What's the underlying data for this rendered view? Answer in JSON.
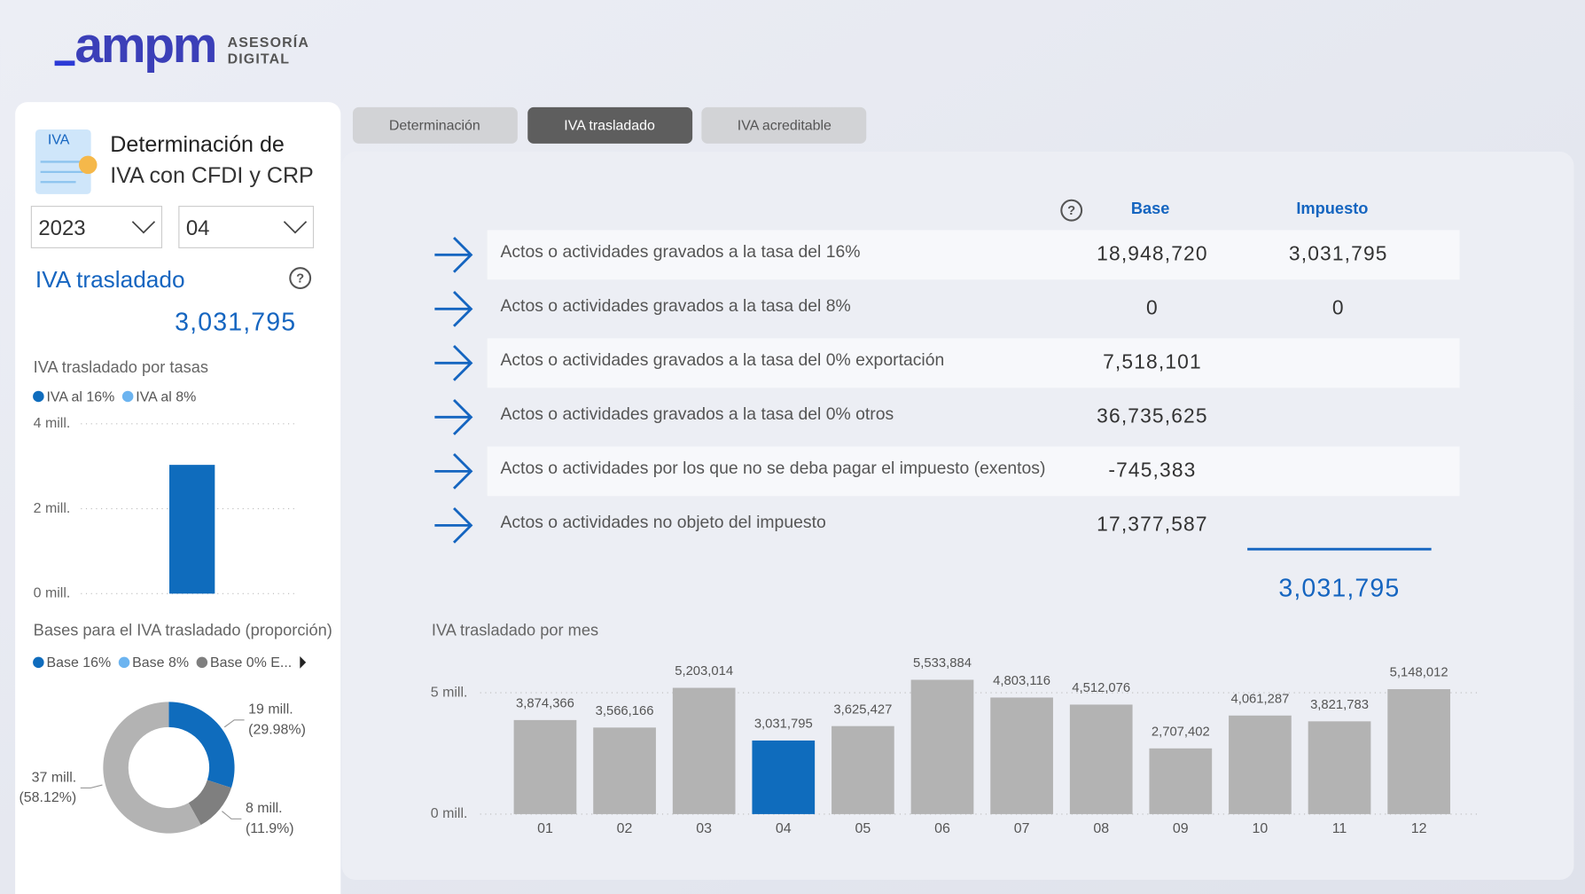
{
  "logo": {
    "brand": "ampm",
    "line1": "ASESORÍA",
    "line2": "DIGITAL"
  },
  "sidebar": {
    "icon_label": "IVA",
    "title_line1": "Determinación de",
    "title_line2": "IVA con CFDI y CRP",
    "year": "2023",
    "month": "04",
    "section": "IVA trasladado",
    "help": "?",
    "total": "3,031,795"
  },
  "tabs": [
    "Determinación",
    "IVA trasladado",
    "IVA acreditable"
  ],
  "table": {
    "help": "?",
    "headers": [
      "Base",
      "Impuesto"
    ],
    "rows": [
      [
        "Actos o actividades gravados a la tasa del 16%",
        "18,948,720",
        "3,031,795"
      ],
      [
        "Actos o actividades gravados a la tasa del 8%",
        "0",
        "0"
      ],
      [
        "Actos o actividades gravados a la tasa del 0% exportación",
        "7,518,101"
      ],
      [
        "Actos o actividades gravados a la tasa del 0% otros",
        "36,735,625"
      ],
      [
        "Actos o actividades por los que no se deba pagar el impuesto (exentos)",
        "-745,383"
      ],
      [
        "Actos o actividades no objeto del impuesto",
        "17,377,587"
      ]
    ],
    "total": "3,031,795"
  },
  "chart_data": [
    {
      "type": "bar",
      "title": "IVA trasladado por tasas",
      "categories": [
        null
      ],
      "series": [
        {
          "name": "IVA al 16%",
          "color": "#0f6cbd",
          "values": [
            3.031795
          ]
        },
        {
          "name": "IVA al 8%",
          "color": "#6cb4f0",
          "values": [
            0
          ]
        }
      ],
      "ylim": [
        0,
        4
      ],
      "yticks": [
        {
          "value": 0,
          "label": "0 mill."
        },
        {
          "value": 2,
          "label": "2 mill."
        },
        {
          "value": 4,
          "label": "4 mill."
        }
      ],
      "grid": true
    },
    {
      "type": "donut",
      "title": "Bases para el IVA trasladado (proporción)",
      "categories": [
        "Base 16%",
        "Base 8%",
        "Base 0% E...",
        null
      ],
      "values": [
        29.98,
        0,
        11.9,
        58.12
      ],
      "value_labels": [
        "(29.98%)",
        null,
        "(11.9%)",
        "(58.12%)"
      ],
      "amount_labels": [
        "19 mill.",
        null,
        "8 mill.",
        "37 mill."
      ],
      "colors": [
        "#0f6cbd",
        "#6cb4f0",
        "#7f7f7f",
        "#b3b3b3"
      ]
    },
    {
      "type": "bar",
      "title": "IVA trasladado por mes",
      "categories": [
        "01",
        "02",
        "03",
        "04",
        "05",
        "06",
        "07",
        "08",
        "09",
        "10",
        "11",
        "12"
      ],
      "values": [
        3.874366,
        3.566166,
        5.203014,
        3.031795,
        3.625427,
        5.533884,
        4.803116,
        4.512076,
        2.707402,
        4.061287,
        3.821783,
        5.148012
      ],
      "value_labels": [
        "3,874,366",
        "3,566,166",
        "5,203,014",
        "3,031,795",
        "3,625,427",
        "5,533,884",
        "4,803,116",
        "4,512,076",
        "2,707,402",
        "4,061,287",
        "3,821,783",
        "5,148,012"
      ],
      "colors": [
        "#b3b3b3",
        "#b3b3b3",
        "#b3b3b3",
        "#0f6cbd",
        "#b3b3b3",
        "#b3b3b3",
        "#b3b3b3",
        "#b3b3b3",
        "#b3b3b3",
        "#b3b3b3",
        "#b3b3b3",
        "#b3b3b3"
      ],
      "ylim": [
        0,
        6
      ],
      "yticks": [
        {
          "value": 0,
          "label": "0 mill."
        },
        {
          "value": 5,
          "label": "5 mill."
        }
      ],
      "grid": true
    }
  ]
}
